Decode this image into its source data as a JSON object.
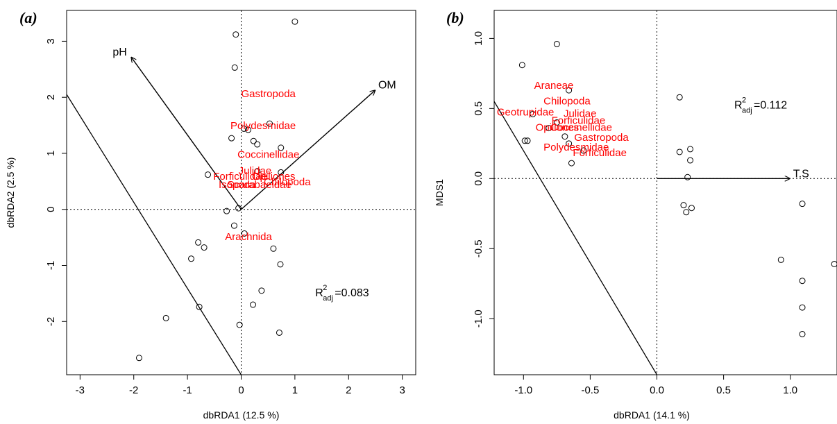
{
  "chart_data": [
    {
      "type": "scatter",
      "panel_label": "(a)",
      "xlabel": "dbRDA1 (12.5 %)",
      "ylabel": "dbRDA2 (2.5 %)",
      "xlim": [
        -3.25,
        3.25
      ],
      "ylim": [
        -2.95,
        3.55
      ],
      "xticks": [
        -3,
        -2,
        -1,
        0,
        1,
        2,
        3
      ],
      "yticks": [
        -2,
        -1,
        0,
        1,
        2,
        3
      ],
      "reference_lines": {
        "x": 0,
        "y": 0,
        "style": "dotted"
      },
      "points": [
        {
          "x": -0.1,
          "y": 3.12
        },
        {
          "x": 1.0,
          "y": 3.35
        },
        {
          "x": -0.12,
          "y": 2.53
        },
        {
          "x": 0.53,
          "y": 1.53
        },
        {
          "x": 0.05,
          "y": 1.44
        },
        {
          "x": 0.13,
          "y": 1.42
        },
        {
          "x": -0.18,
          "y": 1.27
        },
        {
          "x": 0.23,
          "y": 1.22
        },
        {
          "x": 0.3,
          "y": 1.16
        },
        {
          "x": 0.74,
          "y": 1.1
        },
        {
          "x": 0.3,
          "y": 0.68
        },
        {
          "x": 0.74,
          "y": 0.66
        },
        {
          "x": -0.62,
          "y": 0.62
        },
        {
          "x": -0.05,
          "y": 0.02
        },
        {
          "x": -0.27,
          "y": -0.03
        },
        {
          "x": -0.13,
          "y": -0.29
        },
        {
          "x": 0.06,
          "y": -0.43
        },
        {
          "x": -0.8,
          "y": -0.59
        },
        {
          "x": -0.69,
          "y": -0.68
        },
        {
          "x": 0.6,
          "y": -0.7
        },
        {
          "x": -0.93,
          "y": -0.88
        },
        {
          "x": 0.73,
          "y": -0.98
        },
        {
          "x": 0.38,
          "y": -1.45
        },
        {
          "x": 0.22,
          "y": -1.7
        },
        {
          "x": -0.78,
          "y": -1.74
        },
        {
          "x": -1.4,
          "y": -1.94
        },
        {
          "x": -0.03,
          "y": -2.06
        },
        {
          "x": 0.71,
          "y": -2.2
        },
        {
          "x": -1.9,
          "y": -2.65
        }
      ],
      "species": [
        {
          "label": "Gastropoda",
          "x": 0.0,
          "y": 2.0
        },
        {
          "label": "Polydesmidae",
          "x": -0.2,
          "y": 1.43
        },
        {
          "label": "Coccinellidae",
          "x": -0.07,
          "y": 0.92
        },
        {
          "label": "Julidae",
          "x": -0.05,
          "y": 0.63
        },
        {
          "label": "Forficulidae",
          "x": -0.52,
          "y": 0.53
        },
        {
          "label": "Opiliones",
          "x": 0.2,
          "y": 0.53
        },
        {
          "label": "Chilopoda",
          "x": 0.42,
          "y": 0.43
        },
        {
          "label": "Isopoda",
          "x": -0.42,
          "y": 0.38
        },
        {
          "label": "Scarabaeidae",
          "x": -0.26,
          "y": 0.38
        },
        {
          "label": "Arachnida",
          "x": -0.3,
          "y": -0.55
        }
      ],
      "vectors": [
        {
          "label": "pH",
          "x": -2.05,
          "y": 2.72
        },
        {
          "label": "OM",
          "x": 2.5,
          "y": 2.13
        }
      ],
      "diagonal_line": {
        "x1": -3.25,
        "y1": 2.05,
        "x2": 0,
        "y2": -2.95
      },
      "annotation": {
        "text": "R",
        "superscript": "2",
        "subscript": "adj",
        "value": "=0.083",
        "x": 1.38,
        "y": -1.55
      }
    },
    {
      "type": "scatter",
      "panel_label": "(b)",
      "xlabel": "dbRDA1 (14.1 %)",
      "ylabel": "MDS1",
      "xlim": [
        -1.22,
        1.35
      ],
      "ylim": [
        -1.4,
        1.2
      ],
      "xticks": [
        -1.0,
        -0.5,
        0.0,
        0.5,
        1.0
      ],
      "yticks": [
        -1.0,
        -0.5,
        0.0,
        0.5,
        1.0
      ],
      "reference_lines": {
        "x": 0,
        "y": 0,
        "style": "dotted"
      },
      "points": [
        {
          "x": -0.75,
          "y": 0.96
        },
        {
          "x": -1.01,
          "y": 0.81
        },
        {
          "x": -0.66,
          "y": 0.63
        },
        {
          "x": -0.93,
          "y": 0.46
        },
        {
          "x": -0.75,
          "y": 0.4
        },
        {
          "x": -0.81,
          "y": 0.36
        },
        {
          "x": -0.69,
          "y": 0.3
        },
        {
          "x": -0.66,
          "y": 0.25
        },
        {
          "x": -0.99,
          "y": 0.27
        },
        {
          "x": -0.97,
          "y": 0.27
        },
        {
          "x": -0.55,
          "y": 0.2
        },
        {
          "x": -0.64,
          "y": 0.11
        },
        {
          "x": 0.17,
          "y": 0.58
        },
        {
          "x": 0.17,
          "y": 0.19
        },
        {
          "x": 0.25,
          "y": 0.21
        },
        {
          "x": 0.25,
          "y": 0.13
        },
        {
          "x": 0.23,
          "y": 0.01
        },
        {
          "x": 0.2,
          "y": -0.19
        },
        {
          "x": 0.22,
          "y": -0.24
        },
        {
          "x": 0.26,
          "y": -0.21
        },
        {
          "x": 1.09,
          "y": -0.18
        },
        {
          "x": 0.93,
          "y": -0.58
        },
        {
          "x": 1.33,
          "y": -0.61
        },
        {
          "x": 1.09,
          "y": -0.73
        },
        {
          "x": 1.09,
          "y": -0.92
        },
        {
          "x": 1.09,
          "y": -1.11
        }
      ],
      "species": [
        {
          "label": "Araneae",
          "x": -0.92,
          "y": 0.64
        },
        {
          "label": "Chilopoda",
          "x": -0.85,
          "y": 0.53
        },
        {
          "label": "Geotrupidae",
          "x": -1.2,
          "y": 0.45
        },
        {
          "label": "Julidae",
          "x": -0.7,
          "y": 0.44
        },
        {
          "label": "Forficulidae",
          "x": -0.79,
          "y": 0.39
        },
        {
          "label": "Opiliones",
          "x": -0.91,
          "y": 0.34
        },
        {
          "label": "Coccinellidae",
          "x": -0.8,
          "y": 0.34
        },
        {
          "label": "Gastropoda",
          "x": -0.62,
          "y": 0.27
        },
        {
          "label": "Polydesmidae",
          "x": -0.85,
          "y": 0.2
        },
        {
          "label": "Forficulidae",
          "x": -0.63,
          "y": 0.16
        }
      ],
      "vectors": [
        {
          "label": "T.S",
          "x": 1.0,
          "y": 0.0
        }
      ],
      "diagonal_line": {
        "x1": -1.22,
        "y1": 0.55,
        "x2": 0,
        "y2": -1.4
      },
      "annotation": {
        "text": "R",
        "superscript": "2",
        "subscript": "adj",
        "value": "=0.112",
        "x": 0.58,
        "y": 0.5
      }
    }
  ]
}
